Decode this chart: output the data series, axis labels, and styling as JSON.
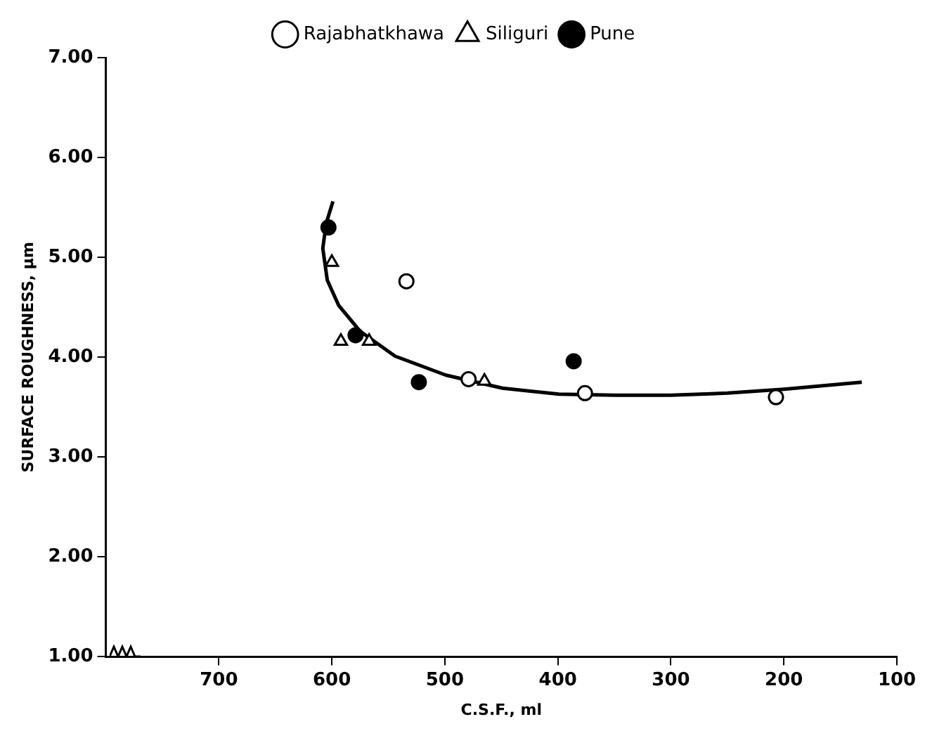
{
  "chart_data": {
    "type": "scatter",
    "xlabel": "C.S.F., ml",
    "ylabel": "SURFACE ROUGHNESS, µm",
    "xlim": [
      800,
      100
    ],
    "xticks": [
      700,
      600,
      500,
      400,
      300,
      200,
      100
    ],
    "ylim": [
      1,
      7
    ],
    "yticks": [
      {
        "value": 1,
        "label": "1.00"
      },
      {
        "value": 2,
        "label": "2.00"
      },
      {
        "value": 3,
        "label": "3.00"
      },
      {
        "value": 4,
        "label": "4.00"
      },
      {
        "value": 5,
        "label": "5.00"
      },
      {
        "value": 6,
        "label": "6.00"
      },
      {
        "value": 7,
        "label": "7.00"
      }
    ],
    "grid": false,
    "legend": "top",
    "series": [
      {
        "name": "Rajabhatkhawa",
        "color": "#000000",
        "marker": "circle",
        "x": [
          534,
          479,
          376,
          207
        ],
        "values": [
          4.76,
          3.78,
          3.64,
          3.6
        ]
      },
      {
        "name": "Siliguri",
        "color": "#000000",
        "marker": "triangle",
        "x": [
          600,
          592,
          567,
          465
        ],
        "values": [
          4.95,
          4.16,
          4.16,
          3.76
        ]
      },
      {
        "name": "Pune",
        "color": "#000000",
        "marker": "circle",
        "x": [
          603,
          579,
          523,
          386
        ],
        "values": [
          5.3,
          4.22,
          3.75,
          3.96
        ]
      },
      {
        "type": "line",
        "color": "#000000",
        "marker": "none",
        "line_style": "solid",
        "x": [
          599,
          605,
          608,
          604,
          594,
          575,
          544,
          499,
          449,
          399,
          350,
          300,
          250,
          200,
          131
        ],
        "values": [
          5.56,
          5.34,
          5.09,
          4.77,
          4.52,
          4.26,
          4.01,
          3.82,
          3.69,
          3.63,
          3.62,
          3.62,
          3.64,
          3.68,
          3.75
        ]
      }
    ]
  }
}
